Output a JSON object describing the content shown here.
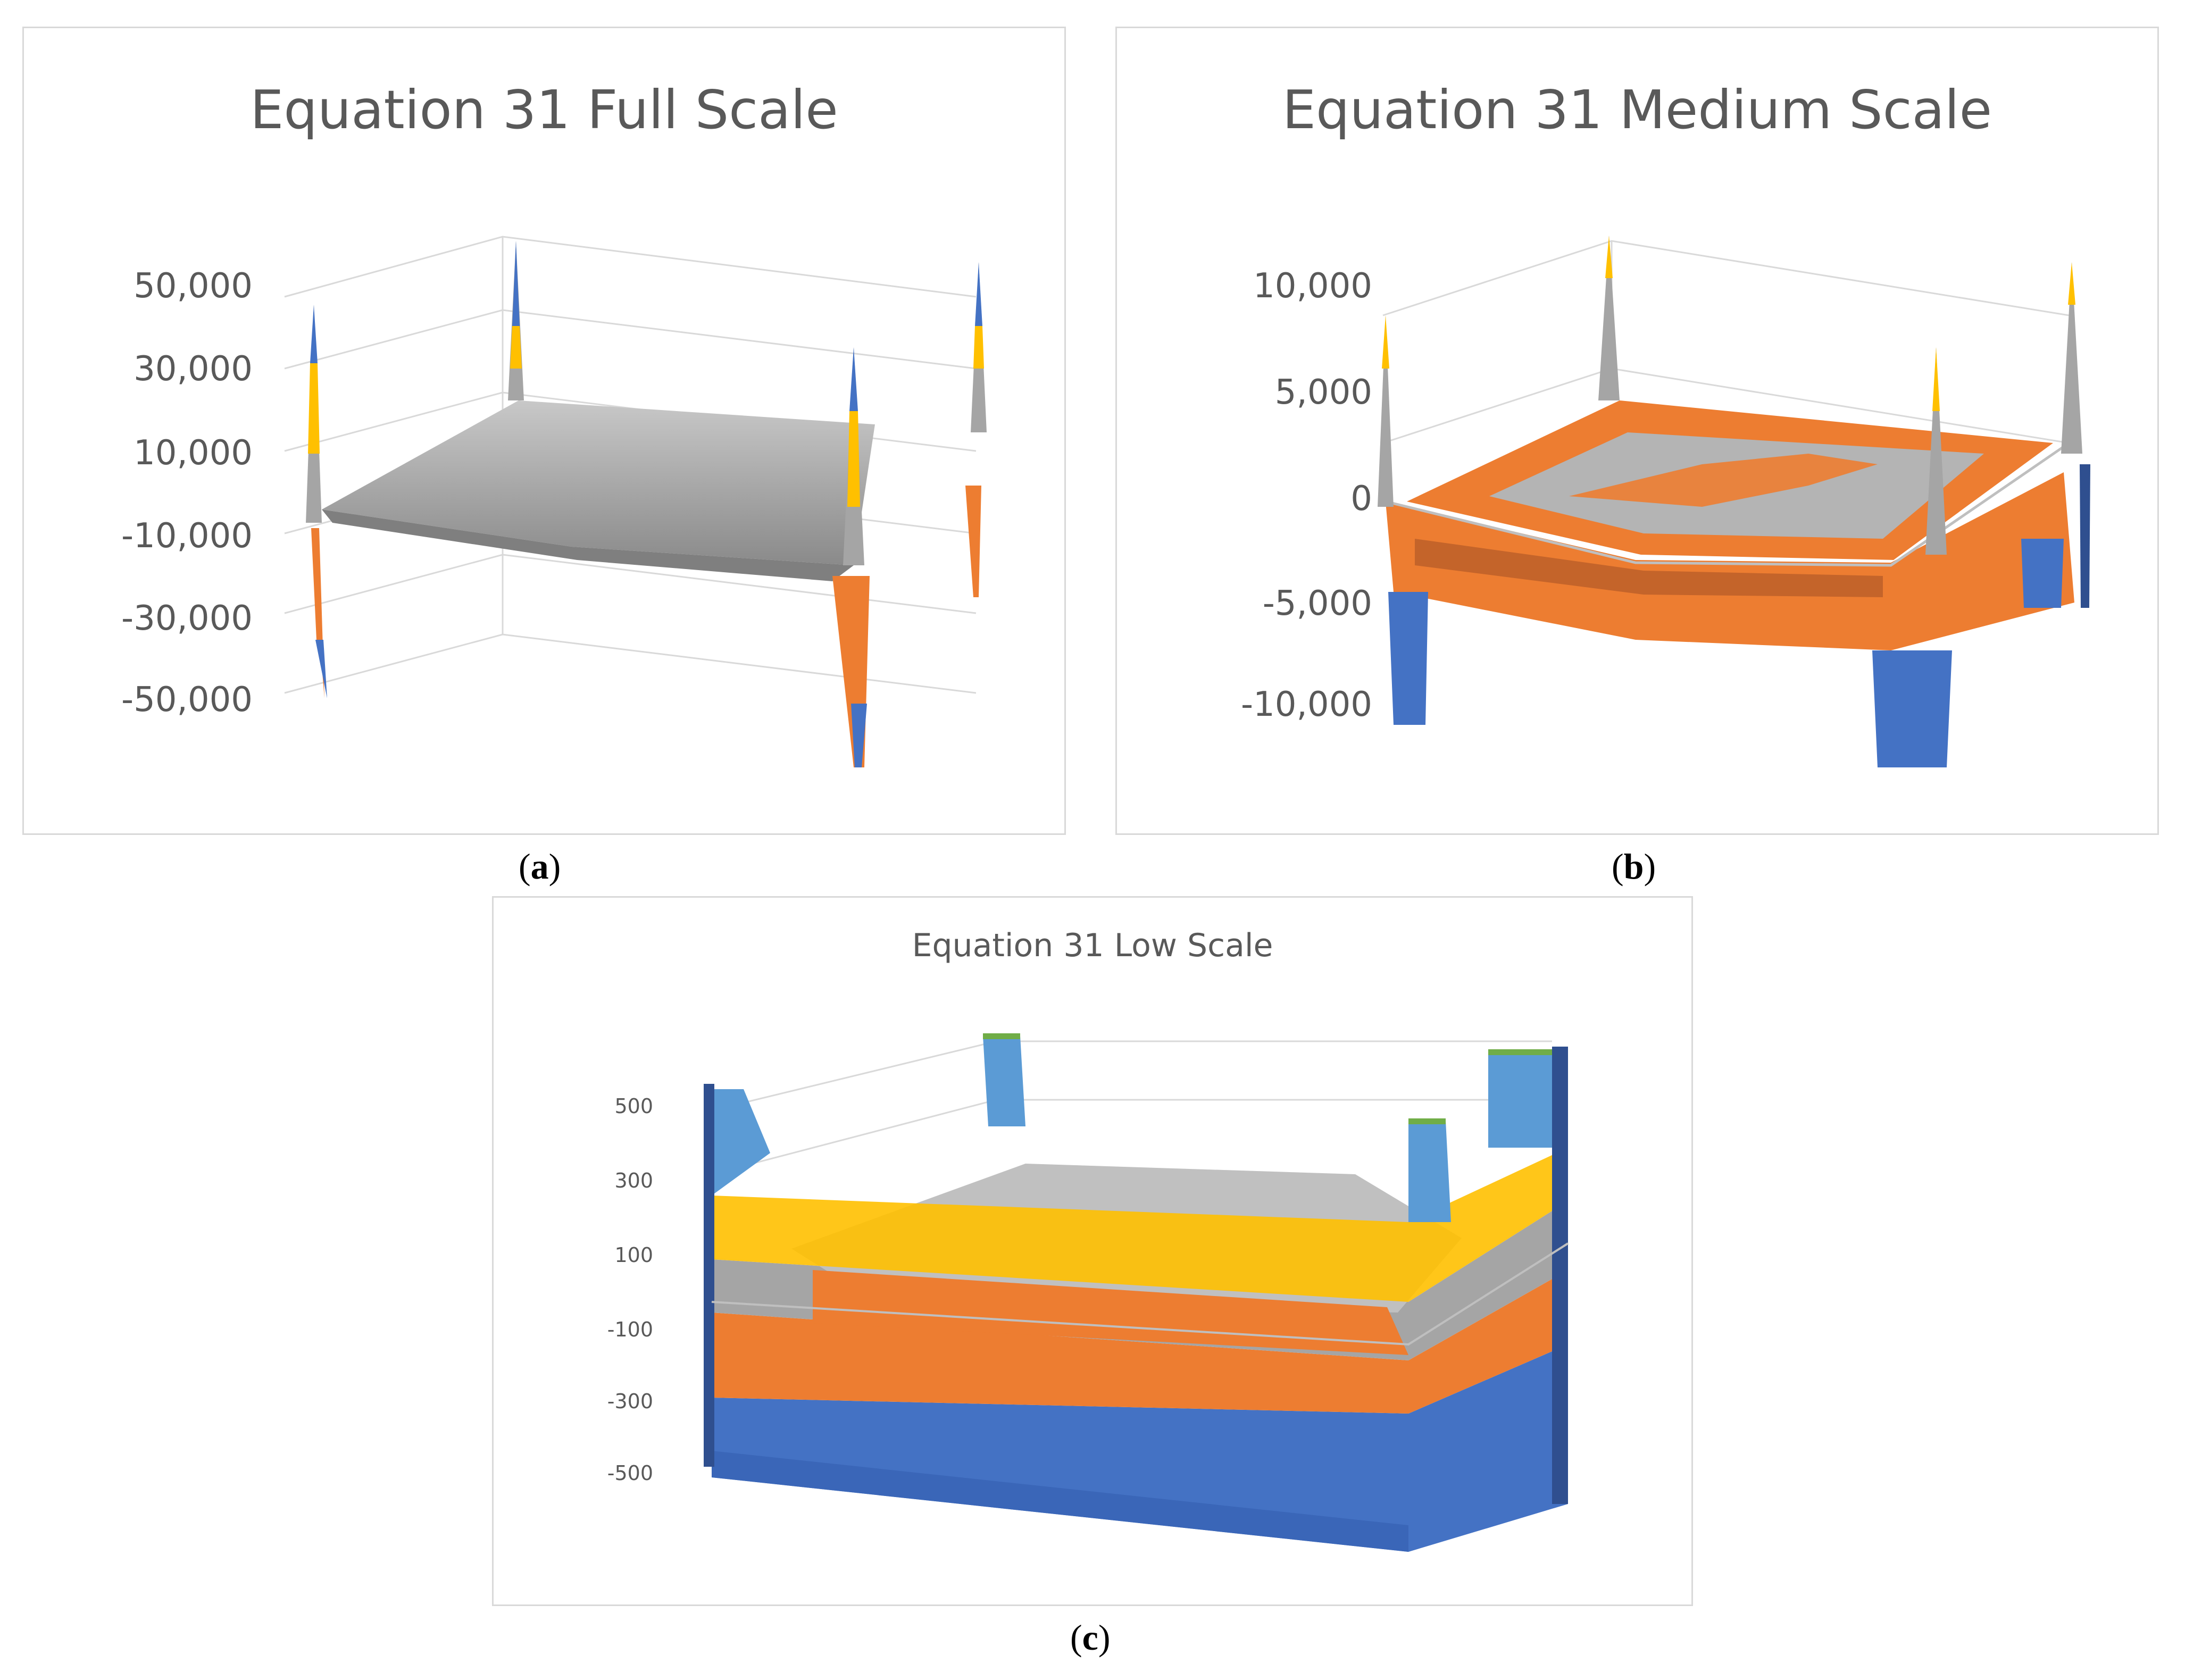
{
  "chart_data": [
    {
      "type": "surface",
      "title": "Equation 31 Full Scale",
      "z_ticks": [
        "50,000",
        "30,000",
        "10,000",
        "-10,000",
        "-30,000",
        "-50,000"
      ],
      "zlim": [
        -50000,
        50000
      ],
      "colors": [
        "#4472c4",
        "#ed7d31",
        "#a5a5a5",
        "#ffc000"
      ],
      "caption": "a"
    },
    {
      "type": "surface",
      "title": "Equation 31 Medium Scale",
      "z_ticks": [
        "10,000",
        "5,000",
        "0",
        "-5,000",
        "-10,000"
      ],
      "zlim": [
        -10000,
        10000
      ],
      "colors": [
        "#4472c4",
        "#ed7d31",
        "#a5a5a5",
        "#ffc000"
      ],
      "caption": "b"
    },
    {
      "type": "surface",
      "title": "Equation 31 Low Scale",
      "z_ticks": [
        "500",
        "300",
        "100",
        "-100",
        "-300",
        "-500"
      ],
      "zlim": [
        -500,
        500
      ],
      "colors": [
        "#4472c4",
        "#ed7d31",
        "#a5a5a5",
        "#ffc000",
        "#5b9bd5",
        "#70ad47"
      ],
      "caption": "c"
    }
  ]
}
